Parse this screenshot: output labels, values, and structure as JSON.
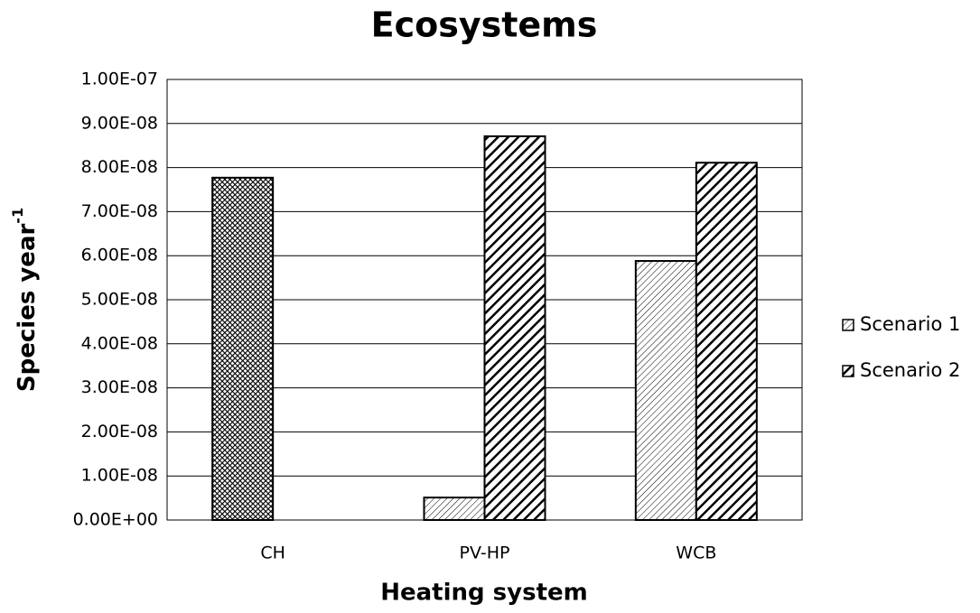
{
  "chart_data": {
    "type": "bar",
    "title": "Ecosystems",
    "xlabel": "Heating system",
    "ylabel": "Species year",
    "ylabel_sup": "-1",
    "categories": [
      "CH",
      "PV-HP",
      "WCB"
    ],
    "series": [
      {
        "name": "Scenario 1",
        "color": "#000000",
        "pattern": "fine-diagonal",
        "point_patterns": [
          "crosshatch",
          "fine-diagonal",
          "fine-diagonal"
        ],
        "values": [
          7.77e-08,
          5.1e-09,
          5.88e-08
        ]
      },
      {
        "name": "Scenario 2",
        "color": "#000000",
        "pattern": "bold-diagonal",
        "values": [
          null,
          8.71e-08,
          8.11e-08
        ]
      }
    ],
    "ylim": [
      0,
      1e-07
    ],
    "yticks": [
      {
        "value": 0,
        "label": "0.00E+00"
      },
      {
        "value": 1e-08,
        "label": "1.00E-08"
      },
      {
        "value": 2e-08,
        "label": "2.00E-08"
      },
      {
        "value": 3e-08,
        "label": "3.00E-08"
      },
      {
        "value": 4e-08,
        "label": "4.00E-08"
      },
      {
        "value": 5e-08,
        "label": "5.00E-08"
      },
      {
        "value": 6e-08,
        "label": "6.00E-08"
      },
      {
        "value": 7e-08,
        "label": "7.00E-08"
      },
      {
        "value": 8e-08,
        "label": "8.00E-08"
      },
      {
        "value": 9e-08,
        "label": "9.00E-08"
      },
      {
        "value": 1e-07,
        "label": "1.00E-07"
      }
    ],
    "grid": true,
    "legend": "right"
  }
}
